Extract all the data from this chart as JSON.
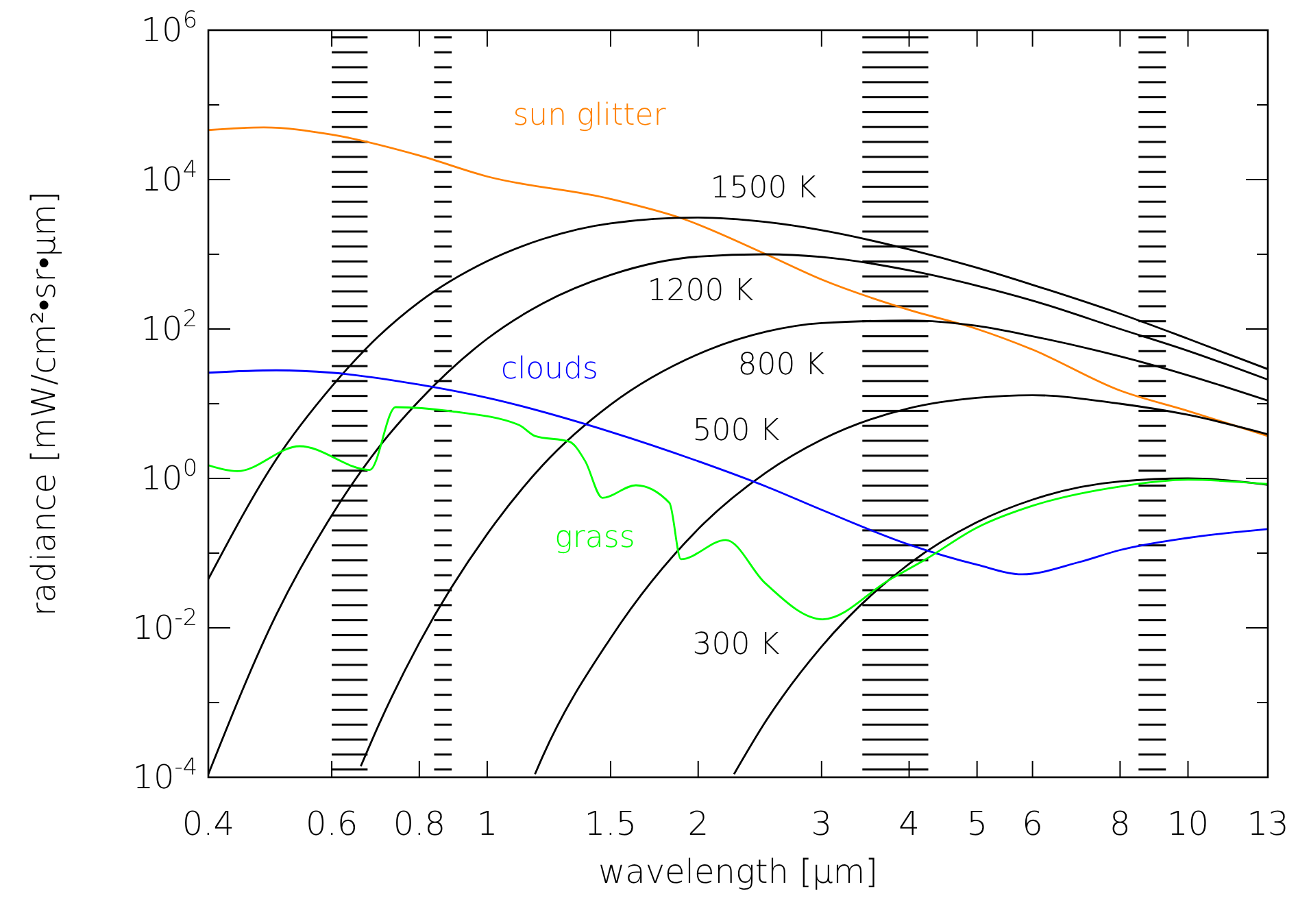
{
  "chart_data": {
    "type": "line",
    "xlabel": "wavelength [µm]",
    "ylabel": "radiance [mW/cm²•sr•µm]",
    "log": "xy",
    "xlim": [
      0.4,
      13
    ],
    "ylim": [
      0.0001,
      1000000
    ],
    "xticks": [
      0.4,
      0.6,
      0.8,
      1,
      1.5,
      2,
      3,
      4,
      5,
      6,
      8,
      10,
      13
    ],
    "yticks": [
      {
        "value": 0.0001,
        "label": "10$^{-4}$"
      },
      {
        "value": 0.001,
        "label": null
      },
      {
        "value": 0.01,
        "label": "10$^{-2}$"
      },
      {
        "value": 0.1,
        "label": null
      },
      {
        "value": 1,
        "label": "10$^{0}$"
      },
      {
        "value": 10,
        "label": null
      },
      {
        "value": 100,
        "label": "10$^{2}$"
      },
      {
        "value": 1000,
        "label": null
      },
      {
        "value": 10000,
        "label": "10$^{4}$"
      },
      {
        "value": 100000,
        "label": null
      },
      {
        "value": 1000000,
        "label": "10$^{6}$"
      }
    ],
    "grid": false,
    "marker": "none",
    "line_style": "solid",
    "bands": [
      {
        "axis": "x",
        "from": 0.6,
        "to": 0.675,
        "color": "#000000"
      },
      {
        "axis": "x",
        "from": 0.84,
        "to": 0.89,
        "color": "#000000"
      },
      {
        "axis": "x",
        "from": 3.43,
        "to": 4.26,
        "color": "#000000"
      },
      {
        "axis": "x",
        "from": 8.5,
        "to": 9.3,
        "color": "#000000"
      }
    ],
    "series": [
      {
        "name": "sun glitter",
        "color": "#ff8000",
        "x": [
          0.4,
          0.48,
          0.6,
          0.8,
          1,
          1.5,
          1.9,
          2.5,
          3,
          4,
          5,
          6,
          8,
          10,
          13
        ],
        "values": [
          46000,
          50000,
          40000,
          21000,
          11000,
          5500,
          3000,
          1000,
          460,
          180,
          100,
          53,
          15,
          8,
          3.7
        ]
      },
      {
        "name": "1500 K",
        "color": "#000000",
        "x": [
          0.4,
          0.5,
          0.6,
          0.7,
          0.8,
          1,
          1.2,
          1.5,
          2,
          2.5,
          3,
          4,
          5,
          6,
          8,
          10,
          13
        ],
        "values": [
          0.045,
          1.8,
          17,
          80,
          230,
          810,
          1600,
          2600,
          3100,
          2700,
          2100,
          1160,
          660,
          390,
          160,
          74,
          29
        ]
      },
      {
        "name": "1200 K",
        "color": "#000000",
        "x": [
          0.4,
          0.5,
          0.6,
          0.7,
          0.8,
          1,
          1.2,
          1.5,
          2,
          2.5,
          3,
          4,
          5,
          6,
          8,
          10,
          13
        ],
        "values": [
          0.00011,
          0.015,
          0.32,
          2.6,
          11,
          74,
          220,
          530,
          930,
          1000,
          920,
          610,
          380,
          240,
          100,
          51,
          21
        ]
      },
      {
        "name": "800 K",
        "color": "#000000",
        "x": [
          0.66,
          0.7,
          0.8,
          1,
          1.2,
          1.5,
          2,
          2.5,
          3,
          4,
          5,
          6,
          8,
          10,
          13
        ],
        "values": [
          0.00014,
          0.0005,
          0.0063,
          0.18,
          1.5,
          9.7,
          46,
          92,
          120,
          130,
          110,
          80,
          43,
          24,
          11
        ]
      },
      {
        "name": "500 K",
        "color": "#000000",
        "x": [
          1.17,
          1.2,
          1.5,
          2,
          2.5,
          3,
          4,
          5,
          6,
          8,
          10,
          13
        ],
        "values": [
          0.00011,
          0.00019,
          0.0073,
          0.21,
          1.2,
          3.3,
          8.7,
          12,
          13,
          10,
          7.1,
          3.9
        ]
      },
      {
        "name": "300 K",
        "color": "#000000",
        "x": [
          2.25,
          2.5,
          3,
          4,
          5,
          6,
          8,
          10,
          13
        ],
        "values": [
          0.00011,
          0.00057,
          0.0056,
          0.072,
          0.26,
          0.52,
          0.91,
          1,
          0.82
        ]
      },
      {
        "name": "clouds",
        "color": "#0000ff",
        "x": [
          0.4,
          0.5,
          0.6,
          0.8,
          1,
          1.5,
          2,
          2.5,
          3,
          4,
          5,
          5.8,
          7,
          8,
          10,
          13
        ],
        "values": [
          26,
          28,
          26,
          18,
          12,
          4.2,
          1.7,
          0.78,
          0.38,
          0.13,
          0.07,
          0.052,
          0.076,
          0.11,
          0.16,
          0.21
        ]
      },
      {
        "name": "grass",
        "color": "#00ff00",
        "x": [
          0.4,
          0.44,
          0.54,
          0.68,
          0.74,
          0.89,
          1.11,
          1.17,
          1.31,
          1.38,
          1.46,
          1.63,
          1.82,
          1.89,
          2.19,
          2.49,
          3.01,
          3.75,
          4.2,
          5,
          6,
          8,
          10,
          13
        ],
        "values": [
          1.5,
          1.25,
          2.7,
          1.3,
          9,
          7.9,
          5.2,
          3.7,
          3.1,
          1.7,
          0.55,
          0.81,
          0.47,
          0.083,
          0.15,
          0.04,
          0.013,
          0.044,
          0.08,
          0.22,
          0.43,
          0.78,
          0.96,
          0.84
        ]
      }
    ]
  }
}
